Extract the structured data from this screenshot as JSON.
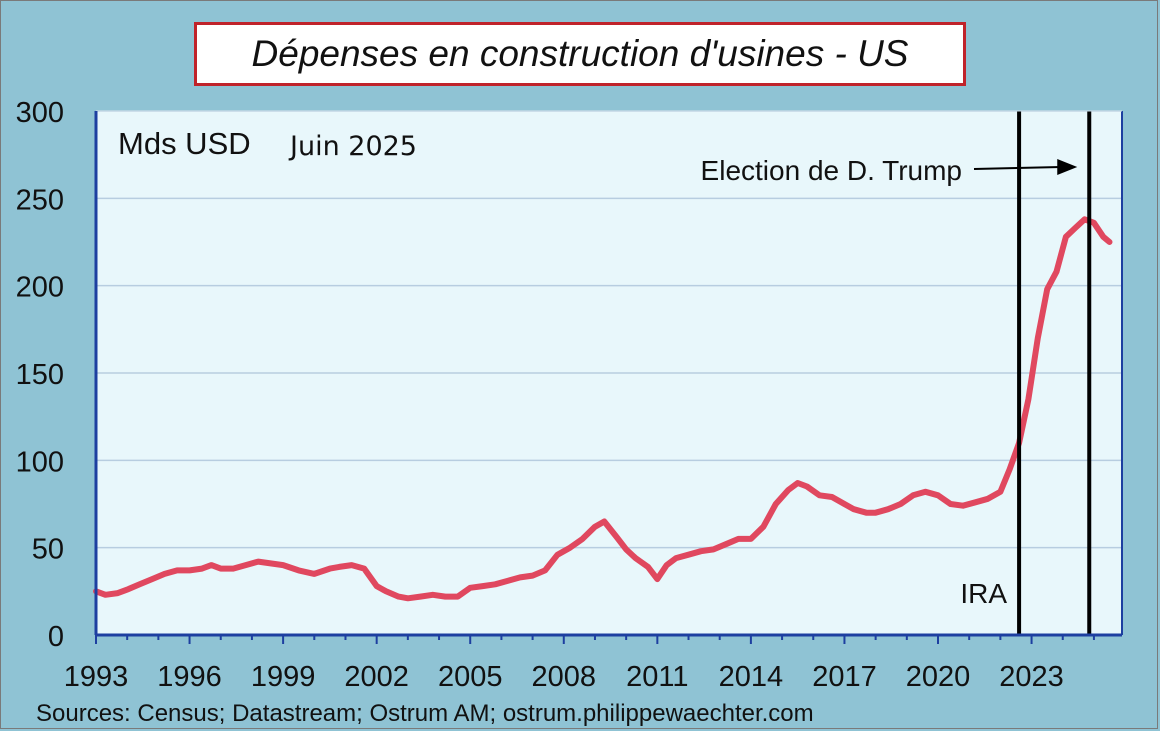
{
  "chart_data": {
    "type": "line",
    "title": "Dépenses en construction d'usines - US",
    "unit_label": "Mds USD",
    "date_label": "Juin 2025",
    "source": "Sources: Census; Datastream; Ostrum AM; ostrum.philippewaechter.com",
    "xlabel": "",
    "ylabel": "",
    "xlim": [
      1993,
      2025.9
    ],
    "ylim": [
      0,
      300
    ],
    "yticks": [
      0,
      50,
      100,
      150,
      200,
      250,
      300
    ],
    "xticks": [
      1993,
      1996,
      1999,
      2002,
      2005,
      2008,
      2011,
      2014,
      2017,
      2020,
      2023
    ],
    "grid": "horizontal",
    "line_color": "#e0485f",
    "series": [
      {
        "name": "",
        "x": [
          1993.0,
          1993.3,
          1993.7,
          1994.0,
          1994.4,
          1994.8,
          1995.2,
          1995.6,
          1996.0,
          1996.4,
          1996.7,
          1997.0,
          1997.4,
          1997.8,
          1998.2,
          1998.6,
          1999.0,
          1999.5,
          2000.0,
          2000.5,
          2000.8,
          2001.2,
          2001.6,
          2002.0,
          2002.3,
          2002.7,
          2003.0,
          2003.4,
          2003.8,
          2004.2,
          2004.6,
          2005.0,
          2005.4,
          2005.8,
          2006.2,
          2006.6,
          2007.0,
          2007.4,
          2007.8,
          2008.2,
          2008.6,
          2009.0,
          2009.3,
          2009.7,
          2010.0,
          2010.3,
          2010.7,
          2011.0,
          2011.3,
          2011.6,
          2012.0,
          2012.4,
          2012.8,
          2013.2,
          2013.6,
          2014.0,
          2014.4,
          2014.8,
          2015.2,
          2015.5,
          2015.8,
          2016.2,
          2016.6,
          2017.0,
          2017.3,
          2017.7,
          2018.0,
          2018.4,
          2018.8,
          2019.2,
          2019.6,
          2020.0,
          2020.4,
          2020.8,
          2021.2,
          2021.6,
          2022.0,
          2022.3,
          2022.6,
          2022.9,
          2023.2,
          2023.5,
          2023.8,
          2024.1,
          2024.4,
          2024.7,
          2025.0,
          2025.3,
          2025.5
        ],
        "values": [
          25,
          23,
          24,
          26,
          29,
          32,
          35,
          37,
          37,
          38,
          40,
          38,
          38,
          40,
          42,
          41,
          40,
          37,
          35,
          38,
          39,
          40,
          38,
          28,
          25,
          22,
          21,
          22,
          23,
          22,
          22,
          27,
          28,
          29,
          31,
          33,
          34,
          37,
          46,
          50,
          55,
          62,
          65,
          56,
          49,
          44,
          39,
          32,
          40,
          44,
          46,
          48,
          49,
          52,
          55,
          55,
          62,
          75,
          83,
          87,
          85,
          80,
          79,
          75,
          72,
          70,
          70,
          72,
          75,
          80,
          82,
          80,
          75,
          74,
          76,
          78,
          82,
          95,
          110,
          135,
          170,
          198,
          208,
          228,
          233,
          238,
          236,
          228,
          225
        ]
      }
    ],
    "annotations": [
      {
        "text": "IRA",
        "x": 2022.6
      },
      {
        "text": "Election de D. Trump",
        "x": 2024.85
      }
    ]
  }
}
